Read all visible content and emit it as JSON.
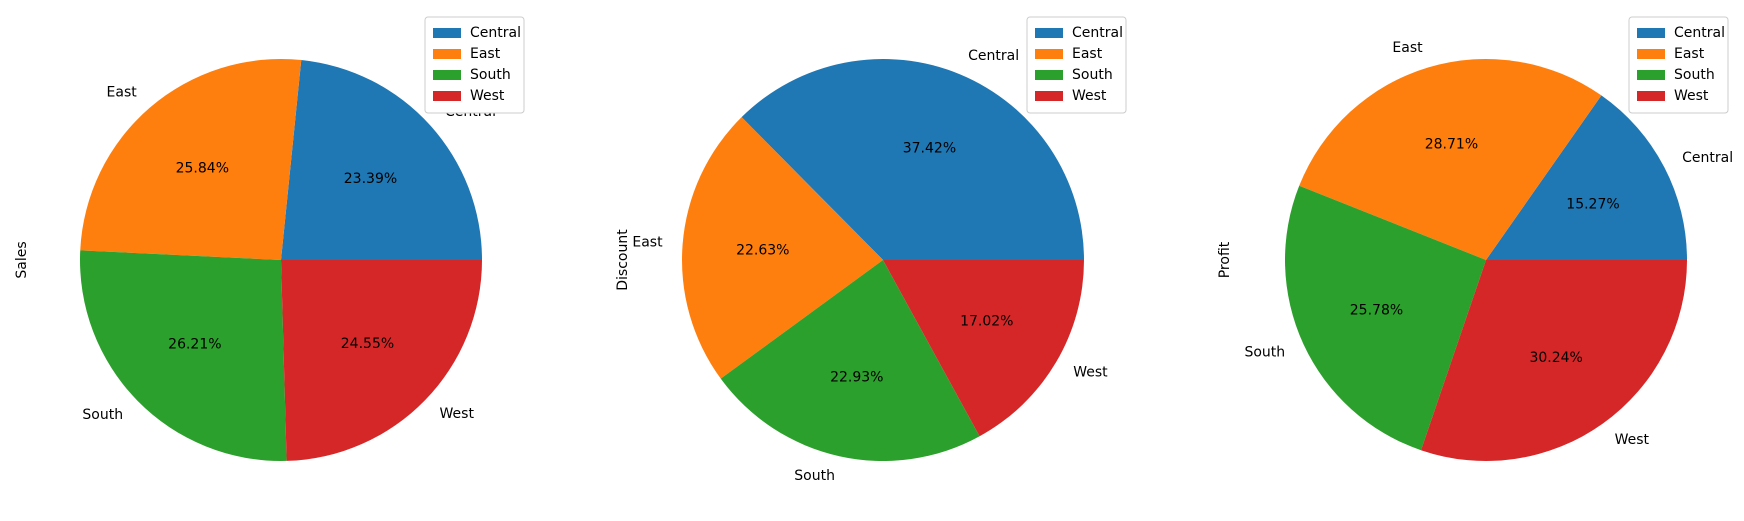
{
  "chart_data": [
    {
      "type": "pie",
      "title": "",
      "ylabel": "Sales",
      "categories": [
        "Central",
        "East",
        "South",
        "West"
      ],
      "values": [
        23.39,
        25.84,
        26.21,
        24.55
      ],
      "pct_labels": [
        "23.39%",
        "25.84%",
        "26.21%",
        "24.55%"
      ],
      "colors": [
        "#1f77b4",
        "#ff7f0e",
        "#2ca02c",
        "#d62728"
      ],
      "legend": {
        "location": "top-right",
        "entries": [
          "Central",
          "East",
          "South",
          "West"
        ]
      }
    },
    {
      "type": "pie",
      "title": "",
      "ylabel": "Discount",
      "categories": [
        "Central",
        "East",
        "South",
        "West"
      ],
      "values": [
        37.42,
        22.63,
        22.93,
        17.02
      ],
      "pct_labels": [
        "37.42%",
        "22.63%",
        "22.93%",
        "17.02%"
      ],
      "colors": [
        "#1f77b4",
        "#ff7f0e",
        "#2ca02c",
        "#d62728"
      ],
      "legend": {
        "location": "top-right",
        "entries": [
          "Central",
          "East",
          "South",
          "West"
        ]
      }
    },
    {
      "type": "pie",
      "title": "",
      "ylabel": "Profit",
      "categories": [
        "Central",
        "East",
        "South",
        "West"
      ],
      "values": [
        15.27,
        28.71,
        25.78,
        30.24
      ],
      "pct_labels": [
        "15.27%",
        "28.71%",
        "25.78%",
        "30.24%"
      ],
      "colors": [
        "#1f77b4",
        "#ff7f0e",
        "#2ca02c",
        "#d62728"
      ],
      "legend": {
        "location": "top-right",
        "entries": [
          "Central",
          "East",
          "South",
          "West"
        ]
      }
    }
  ]
}
